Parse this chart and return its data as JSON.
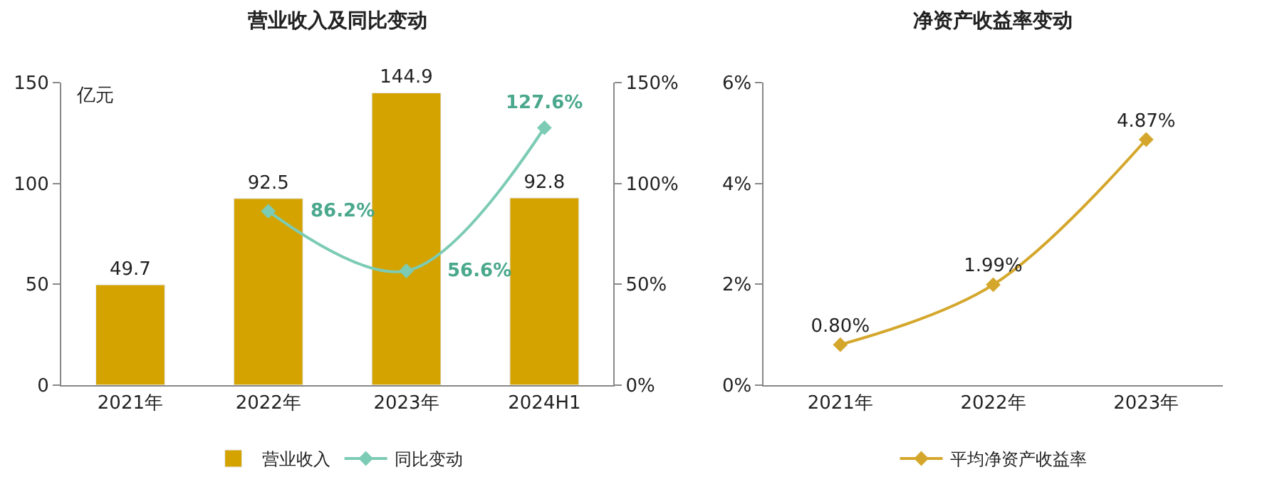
{
  "chart_data": [
    {
      "type": "bar",
      "title": "营业收入及同比变动",
      "ylabel": "亿元",
      "categories": [
        "2021年",
        "2022年",
        "2023年",
        "2024H1"
      ],
      "series": [
        {
          "name": "营业收入",
          "type": "bar",
          "color": "#d4a300",
          "values": [
            49.7,
            92.5,
            144.9,
            92.8
          ]
        },
        {
          "name": "同比变动",
          "type": "line",
          "axis": "y2",
          "color": "#7ccbb4",
          "marker": "diamond",
          "values": [
            null,
            86.2,
            56.6,
            127.6
          ],
          "value_labels": [
            null,
            "86.2%",
            "56.6%",
            "127.6%"
          ]
        }
      ],
      "data_labels": true,
      "ylim": [
        0,
        150
      ],
      "yticks": [
        0,
        50,
        100,
        150
      ],
      "y2lim": [
        0,
        150
      ],
      "y2ticks": [
        {
          "value": 0,
          "label": "0%"
        },
        {
          "value": 50,
          "label": "50%"
        },
        {
          "value": 100,
          "label": "100%"
        },
        {
          "value": 150,
          "label": "150%"
        }
      ],
      "legend": "bottom"
    },
    {
      "type": "line",
      "title": "净资产收益率变动",
      "categories": [
        "2021年",
        "2022年",
        "2023年"
      ],
      "series": [
        {
          "name": "平均净资产收益率",
          "color": "#d4a72c",
          "marker": "diamond",
          "values": [
            0.8,
            1.99,
            4.87
          ],
          "value_labels": [
            "0.80%",
            "1.99%",
            "4.87%"
          ]
        }
      ],
      "ylim": [
        0,
        6
      ],
      "yticks": [
        {
          "value": 0,
          "label": "0%"
        },
        {
          "value": 2,
          "label": "2%"
        },
        {
          "value": 4,
          "label": "4%"
        },
        {
          "value": 6,
          "label": "6%"
        }
      ],
      "legend": "bottom"
    }
  ]
}
